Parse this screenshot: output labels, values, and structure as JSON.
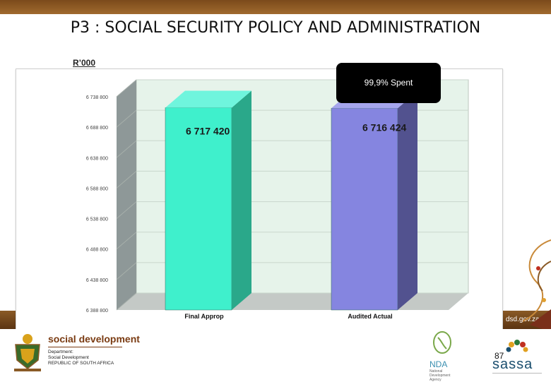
{
  "slide": {
    "title": "P3 : SOCIAL SECURITY POLICY AND ADMINISTRATION",
    "unit_label": "R’000",
    "callout": "99,9% Spent",
    "page_number": "87",
    "url_fragment": "dsd.gov.za"
  },
  "footer": {
    "brand": "social development",
    "department_lines": [
      "Department:",
      "Social Development",
      "REPUBLIC OF SOUTH AFRICA"
    ],
    "nda": "NDA",
    "nda_sub": [
      "National",
      "Development",
      "Agency"
    ],
    "sassa": "sassa"
  },
  "colors": {
    "bar1": "#3ff0cc",
    "bar2": "#8585e0",
    "wall": "#e6f3ea",
    "side_wall": "#8e9898",
    "floor": "#c4c9c6",
    "brand_brown": "#7a3b12"
  },
  "chart_data": {
    "type": "bar",
    "categories": [
      "Final Approp",
      "Audited Actual"
    ],
    "values": [
      6717420,
      6716424
    ],
    "data_labels": [
      "6 717 420",
      "6 716 424"
    ],
    "ylim": [
      6388800,
      6738800
    ],
    "yticks": [
      6388800,
      6438800,
      6488800,
      6538800,
      6588800,
      6638800,
      6688800,
      6738800
    ],
    "ytick_labels": [
      "6 388 800",
      "6 438 800",
      "6 488 800",
      "6 538 800",
      "6 588 800",
      "6 638 800",
      "6 688 800",
      "6 738 800"
    ],
    "grid": true,
    "style": "3d-column"
  }
}
